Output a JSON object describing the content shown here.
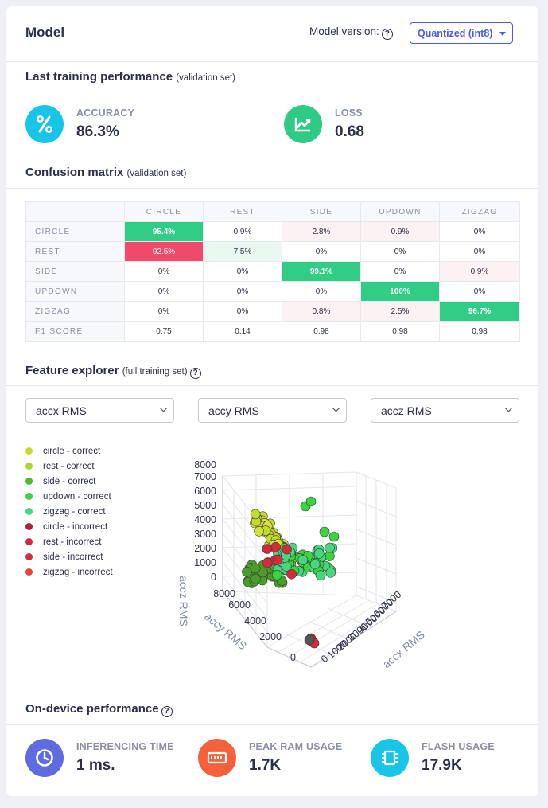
{
  "header": {
    "title": "Model",
    "version_label": "Model version:",
    "version_value": "Quantized (int8)"
  },
  "training": {
    "title": "Last training performance",
    "subtitle": "(validation set)",
    "accuracy_label": "ACCURACY",
    "accuracy_value": "86.3%",
    "loss_label": "LOSS",
    "loss_value": "0.68"
  },
  "confusion": {
    "title": "Confusion matrix",
    "subtitle": "(validation set)",
    "columns": [
      "CIRCLE",
      "REST",
      "SIDE",
      "UPDOWN",
      "ZIGZAG"
    ],
    "rows": [
      {
        "label": "CIRCLE",
        "cells": [
          "95.4%",
          "0.9%",
          "2.8%",
          "0.9%",
          "0%"
        ]
      },
      {
        "label": "REST",
        "cells": [
          "92.5%",
          "7.5%",
          "0%",
          "0%",
          "0%"
        ]
      },
      {
        "label": "SIDE",
        "cells": [
          "0%",
          "0%",
          "99.1%",
          "0%",
          "0.9%"
        ]
      },
      {
        "label": "UPDOWN",
        "cells": [
          "0%",
          "0%",
          "0%",
          "100%",
          "0%"
        ]
      },
      {
        "label": "ZIGZAG",
        "cells": [
          "0%",
          "0%",
          "0.8%",
          "2.5%",
          "96.7%"
        ]
      },
      {
        "label": "F1 SCORE",
        "cells": [
          "0.75",
          "0.14",
          "0.98",
          "0.98",
          "0.98"
        ]
      }
    ]
  },
  "explorer": {
    "title": "Feature explorer",
    "subtitle": "(full training set)",
    "x_select": "accx RMS",
    "y_select": "accy RMS",
    "z_select": "accz RMS",
    "legend": [
      {
        "label": "circle - correct",
        "color": "#c3dc2b"
      },
      {
        "label": "rest - correct",
        "color": "#a8d836"
      },
      {
        "label": "side - correct",
        "color": "#55b62e"
      },
      {
        "label": "updown - correct",
        "color": "#39d53d"
      },
      {
        "label": "zigzag - correct",
        "color": "#47d77f"
      },
      {
        "label": "circle - incorrect",
        "color": "#b0203f"
      },
      {
        "label": "rest - incorrect",
        "color": "#d42a3c"
      },
      {
        "label": "side - incorrect",
        "color": "#cf2f3a"
      },
      {
        "label": "zigzag - incorrect",
        "color": "#e04634"
      }
    ],
    "axes": {
      "z_title": "accz RMS",
      "y_title": "accy RMS",
      "x_title": "accx RMS",
      "z_ticks": [
        "0",
        "1000",
        "2000",
        "3000",
        "4000",
        "5000",
        "6000",
        "7000",
        "8000"
      ],
      "y_ticks": [
        "0",
        "2000",
        "4000",
        "6000",
        "8000"
      ],
      "x_ticks": [
        "0",
        "1000",
        "2000",
        "3000",
        "4000",
        "5000",
        "6000",
        "7000"
      ]
    }
  },
  "device": {
    "title": "On-device performance",
    "inferencing_label": "INFERENCING TIME",
    "inferencing_value": "1 ms.",
    "ram_label": "PEAK RAM USAGE",
    "ram_value": "1.7K",
    "flash_label": "FLASH USAGE",
    "flash_value": "17.9K"
  },
  "colors": {
    "accuracy": "#19c4e9",
    "loss": "#2fcb84",
    "inferencing": "#5f6ce0",
    "ram": "#f4623c",
    "flash": "#19c4e9",
    "matrix_good": "#31cc85",
    "matrix_bad": "#ef4a6c"
  }
}
